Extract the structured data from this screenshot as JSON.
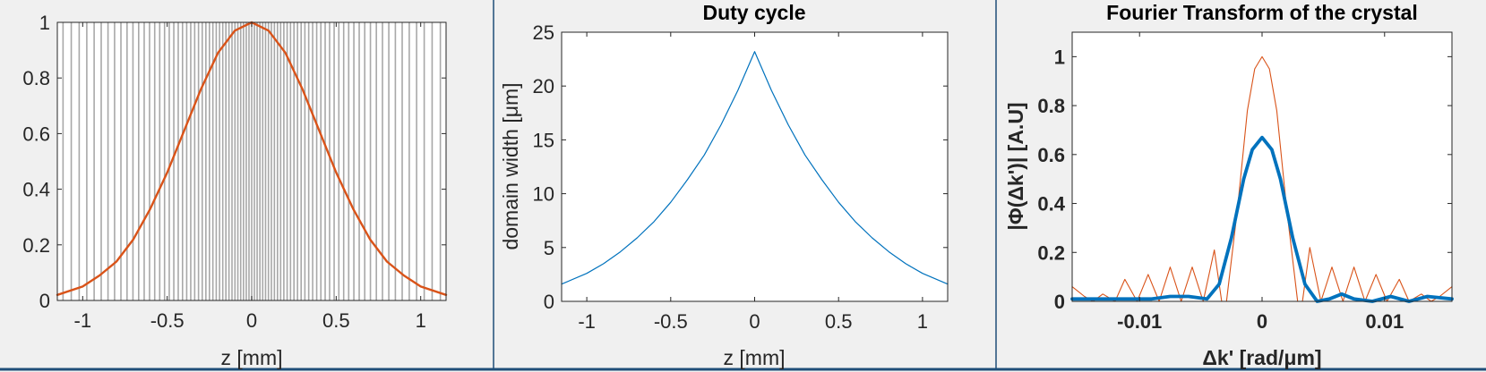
{
  "colors": {
    "figure_bg": "#f0f0f0",
    "axes_bg": "#ffffff",
    "axis": "#262626",
    "separator": "#1f4e79",
    "blue": "#0072bd",
    "orange": "#d95319",
    "domain_lines": "#a8a8a8"
  },
  "chart_data": [
    {
      "type": "line",
      "title": "",
      "xlabel": "z [mm]",
      "ylabel": "",
      "xlim": [
        -1.15,
        1.15
      ],
      "ylim": [
        0,
        1
      ],
      "xticks": [
        -1,
        -0.5,
        0,
        0.5,
        1
      ],
      "xtick_labels": [
        "-1",
        "-0.5",
        "0",
        "0.5",
        "1"
      ],
      "yticks": [
        0,
        0.2,
        0.4,
        0.6,
        0.8,
        1
      ],
      "ytick_labels": [
        "0",
        "0.2",
        "0.4",
        "0.6",
        "0.8",
        "1"
      ],
      "grid": false,
      "background_pattern": "vertical domain boundary lines, dense near z=0 and sparser toward the edges",
      "series": [
        {
          "color": "#d95319",
          "x": [
            -1.15,
            -1.0,
            -0.9,
            -0.8,
            -0.7,
            -0.6,
            -0.5,
            -0.4,
            -0.3,
            -0.2,
            -0.1,
            0,
            0.1,
            0.2,
            0.3,
            0.4,
            0.5,
            0.6,
            0.7,
            0.8,
            0.9,
            1.0,
            1.15
          ],
          "y": [
            0.02,
            0.05,
            0.09,
            0.14,
            0.22,
            0.33,
            0.46,
            0.61,
            0.76,
            0.89,
            0.97,
            1.0,
            0.97,
            0.89,
            0.76,
            0.61,
            0.46,
            0.33,
            0.22,
            0.14,
            0.09,
            0.05,
            0.02
          ]
        }
      ]
    },
    {
      "type": "line",
      "title": "Duty cycle",
      "xlabel": "z [mm]",
      "ylabel": "domain width [μm]",
      "xlim": [
        -1.15,
        1.15
      ],
      "ylim": [
        0,
        25
      ],
      "xticks": [
        -1,
        -0.5,
        0,
        0.5,
        1
      ],
      "xtick_labels": [
        "-1",
        "-0.5",
        "0",
        "0.5",
        "1"
      ],
      "yticks": [
        0,
        5,
        10,
        15,
        20,
        25
      ],
      "ytick_labels": [
        "0",
        "5",
        "10",
        "15",
        "20",
        "25"
      ],
      "grid": false,
      "series": [
        {
          "color": "#0072bd",
          "x": [
            -1.15,
            -1.0,
            -0.9,
            -0.8,
            -0.7,
            -0.6,
            -0.5,
            -0.4,
            -0.3,
            -0.2,
            -0.1,
            0,
            0.1,
            0.2,
            0.3,
            0.4,
            0.5,
            0.6,
            0.7,
            0.8,
            0.9,
            1.0,
            1.15
          ],
          "y": [
            1.6,
            2.6,
            3.5,
            4.6,
            5.9,
            7.4,
            9.2,
            11.3,
            13.6,
            16.4,
            19.6,
            23.2,
            19.6,
            16.4,
            13.6,
            11.3,
            9.2,
            7.4,
            5.9,
            4.6,
            3.5,
            2.6,
            1.6
          ]
        }
      ]
    },
    {
      "type": "line",
      "title": "Fourier Transform of the crystal",
      "xlabel": "Δk' [rad/μm]",
      "ylabel": "|Φ(Δk')| [A.U]",
      "xlim": [
        -0.0155,
        0.0155
      ],
      "ylim": [
        0,
        1.1
      ],
      "xticks": [
        -0.01,
        0,
        0.01
      ],
      "xtick_labels": [
        "-0.01",
        "0",
        "0.01"
      ],
      "yticks": [
        0,
        0.2,
        0.4,
        0.6,
        0.8,
        1
      ],
      "ytick_labels": [
        "0",
        "0.2",
        "0.4",
        "0.6",
        "0.8",
        "1"
      ],
      "grid": false,
      "series": [
        {
          "color": "#d95319",
          "line_weight": "thin",
          "x": [
            -0.0155,
            -0.0145,
            -0.0138,
            -0.013,
            -0.012,
            -0.0112,
            -0.0102,
            -0.0093,
            -0.0084,
            -0.0075,
            -0.0066,
            -0.0057,
            -0.0048,
            -0.0039,
            -0.0033,
            -0.0029,
            -0.002,
            -0.0012,
            -0.0006,
            0,
            0.0006,
            0.0012,
            0.002,
            0.0029,
            0.0033,
            0.0039,
            0.0048,
            0.0057,
            0.0066,
            0.0075,
            0.0084,
            0.0093,
            0.0102,
            0.0112,
            0.012,
            0.013,
            0.0138,
            0.0145,
            0.0155
          ],
          "y": [
            0.06,
            0.02,
            0.0,
            0.03,
            0.0,
            0.09,
            0.0,
            0.11,
            0.0,
            0.14,
            0.0,
            0.14,
            0.0,
            0.21,
            0.0,
            0.0,
            0.38,
            0.78,
            0.95,
            1.0,
            0.95,
            0.78,
            0.38,
            0.0,
            0.0,
            0.22,
            0.0,
            0.14,
            0.0,
            0.14,
            0.0,
            0.11,
            0.0,
            0.09,
            0.0,
            0.03,
            0.0,
            0.02,
            0.06
          ]
        },
        {
          "color": "#0072bd",
          "line_weight": "thick",
          "x": [
            -0.0155,
            -0.012,
            -0.009,
            -0.0075,
            -0.006,
            -0.0045,
            -0.0035,
            -0.0025,
            -0.0015,
            -0.0008,
            0,
            0.0008,
            0.0015,
            0.0025,
            0.0035,
            0.0045,
            0.0055,
            0.0065,
            0.0075,
            0.009,
            0.0105,
            0.012,
            0.0135,
            0.0155
          ],
          "y": [
            0.01,
            0.01,
            0.01,
            0.02,
            0.02,
            0.01,
            0.07,
            0.26,
            0.5,
            0.62,
            0.67,
            0.62,
            0.5,
            0.26,
            0.07,
            0.0,
            0.01,
            0.03,
            0.01,
            0.0,
            0.02,
            0.0,
            0.02,
            0.01
          ]
        }
      ]
    }
  ]
}
